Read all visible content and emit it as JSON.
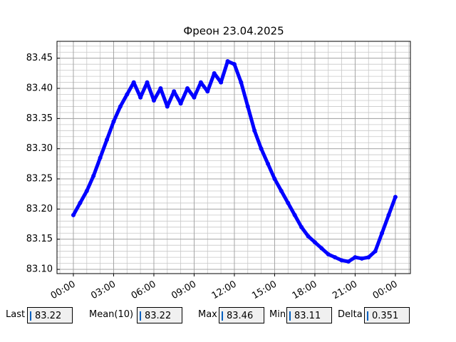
{
  "chart_data": {
    "type": "line",
    "title": "Фреон 23.04.2025",
    "x": [
      0,
      0.5,
      1,
      1.5,
      2,
      2.5,
      3,
      3.5,
      4,
      4.5,
      5,
      5.5,
      6,
      6.5,
      7,
      7.5,
      8,
      8.5,
      9,
      9.5,
      10,
      10.5,
      11,
      11.5,
      12,
      12.5,
      13,
      13.5,
      14,
      14.5,
      15,
      15.5,
      16,
      16.5,
      17,
      17.5,
      18,
      18.5,
      19,
      19.5,
      20,
      20.5,
      21,
      21.5,
      22,
      22.5,
      23,
      23.5,
      24
    ],
    "series": [
      {
        "name": "Фреон",
        "color": "#0000ff",
        "values": [
          83.19,
          83.21,
          83.23,
          83.255,
          83.285,
          83.315,
          83.345,
          83.37,
          83.39,
          83.41,
          83.385,
          83.41,
          83.38,
          83.4,
          83.37,
          83.395,
          83.375,
          83.4,
          83.385,
          83.41,
          83.395,
          83.425,
          83.41,
          83.445,
          83.44,
          83.41,
          83.37,
          83.33,
          83.3,
          83.275,
          83.25,
          83.23,
          83.21,
          83.19,
          83.17,
          83.155,
          83.145,
          83.135,
          83.125,
          83.12,
          83.115,
          83.113,
          83.12,
          83.118,
          83.12,
          83.13,
          83.16,
          83.19,
          83.22
        ]
      }
    ],
    "xlim": [
      -1.22,
      25.12
    ],
    "ylim": [
      83.093,
      83.478
    ],
    "xticks": [
      {
        "value": 0,
        "label": "00:00"
      },
      {
        "value": 3,
        "label": "03:00"
      },
      {
        "value": 6,
        "label": "06:00"
      },
      {
        "value": 9,
        "label": "09:00"
      },
      {
        "value": 12,
        "label": "12:00"
      },
      {
        "value": 15,
        "label": "15:00"
      },
      {
        "value": 18,
        "label": "18:00"
      },
      {
        "value": 21,
        "label": "21:00"
      },
      {
        "value": 24,
        "label": "00:00"
      }
    ],
    "yticks": [
      {
        "value": 83.1,
        "label": "83.10"
      },
      {
        "value": 83.15,
        "label": "83.15"
      },
      {
        "value": 83.2,
        "label": "83.20"
      },
      {
        "value": 83.25,
        "label": "83.25"
      },
      {
        "value": 83.3,
        "label": "83.30"
      },
      {
        "value": 83.35,
        "label": "83.35"
      },
      {
        "value": 83.4,
        "label": "83.40"
      },
      {
        "value": 83.45,
        "label": "83.45"
      }
    ],
    "xminorticks": [
      -1,
      0,
      1,
      2,
      3,
      4,
      5,
      6,
      7,
      8,
      9,
      10,
      11,
      12,
      13,
      14,
      15,
      16,
      17,
      18,
      19,
      20,
      21,
      22,
      23,
      24,
      25
    ],
    "yminorticks": [
      83.1,
      83.11,
      83.12,
      83.13,
      83.14,
      83.15,
      83.16,
      83.17,
      83.18,
      83.19,
      83.2,
      83.21,
      83.22,
      83.23,
      83.24,
      83.25,
      83.26,
      83.27,
      83.28,
      83.29,
      83.3,
      83.31,
      83.32,
      83.33,
      83.34,
      83.35,
      83.36,
      83.37,
      83.38,
      83.39,
      83.4,
      83.41,
      83.42,
      83.43,
      83.44,
      83.45,
      83.46,
      83.47
    ],
    "grid": true
  },
  "stats": [
    {
      "label": "Last",
      "value": "83.22"
    },
    {
      "label": "Mean(10)",
      "value": "83.22"
    },
    {
      "label": "Max",
      "value": "83.46"
    },
    {
      "label": "Min",
      "value": "83.11"
    },
    {
      "label": "Delta",
      "value": "0.351"
    }
  ]
}
